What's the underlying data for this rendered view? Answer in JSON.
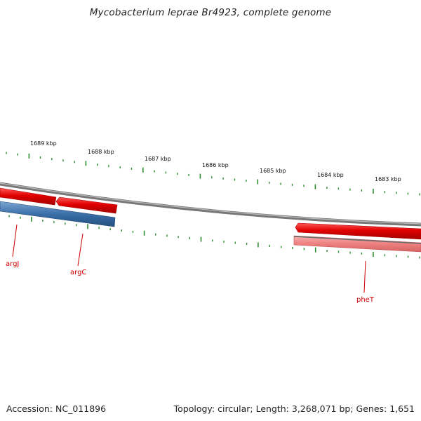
{
  "title": "Mycobacterium leprae Br4923, complete genome",
  "footer": {
    "accession": "Accession: NC_011896",
    "summary": "Topology: circular; Length: 3,268,071 bp; Genes: 1,651"
  },
  "ruler": {
    "labels": [
      "1689 kbp",
      "1688 kbp",
      "1687 kbp",
      "1686 kbp",
      "1685 kbp",
      "1684 kbp",
      "1683 kbp"
    ]
  },
  "genes": [
    {
      "name": "argJ",
      "strand": "forward",
      "color": "#e00000",
      "label_color": "#cc0000"
    },
    {
      "name": "argC",
      "strand": "forward",
      "color": "#e00000",
      "label_color": "#cc0000"
    },
    {
      "name": "pheT",
      "strand": "forward",
      "color": "#e00000",
      "label_color": "#cc0000"
    }
  ],
  "tracks": [
    {
      "name": "forward-cds",
      "color": "#e00000"
    },
    {
      "name": "reverse-cds",
      "color": "#3a6fa8"
    },
    {
      "name": "trna-rrna",
      "color": "#f08080"
    },
    {
      "name": "backbone",
      "color": "#777777"
    },
    {
      "name": "tick-marks",
      "color": "#2e8b2e"
    }
  ]
}
